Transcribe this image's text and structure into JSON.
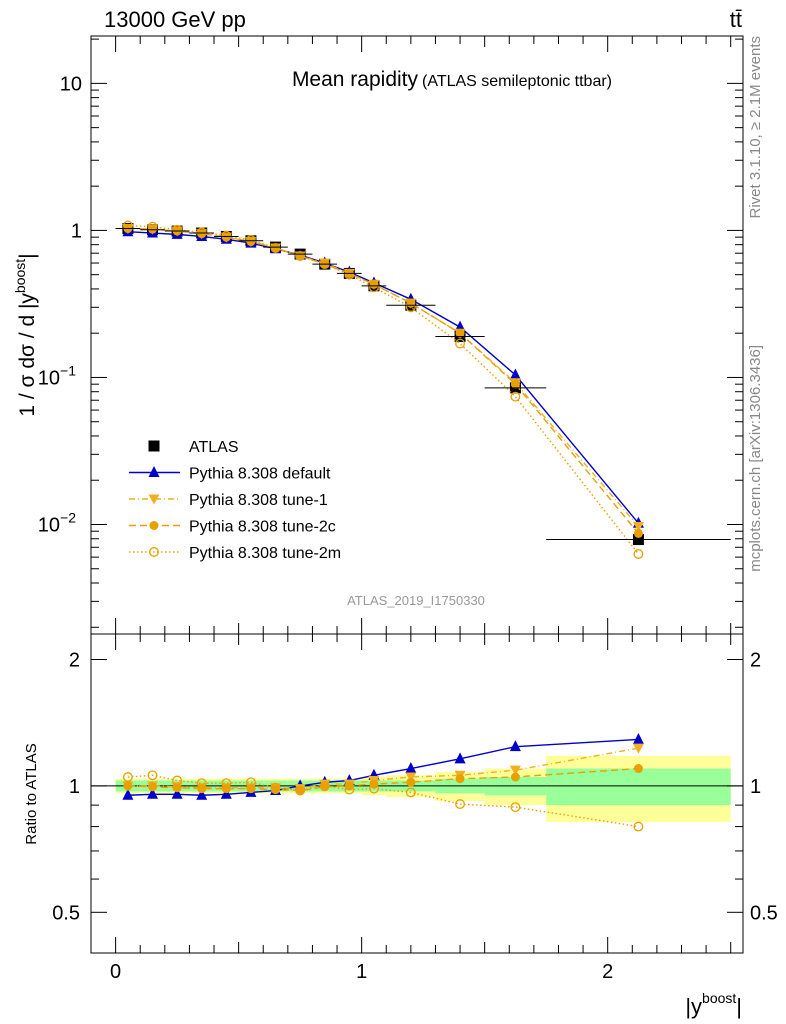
{
  "header": {
    "left": "13000 GeV pp",
    "right": "tt̄"
  },
  "side_labels": {
    "rivet": "Rivet 3.1.10, ≥ 2.1M events",
    "mcplots": "mcplots.cern.ch [arXiv:1306.3436]"
  },
  "chart_data": {
    "type": "line",
    "title": "Mean rapidity",
    "subtitle": "(ATLAS semileptonic ttbar)",
    "watermark": "ATLAS_2019_I1750330",
    "xlabel": "|y",
    "xlabel_sup": "boost",
    "xlabel_end": "|",
    "ylabel_main": "1 / σ dσ / d |y",
    "ylabel_main_sup": "boost",
    "ylabel_main_end": "|",
    "ylabel_ratio": "Ratio to ATLAS",
    "xlim": [
      -0.1,
      2.55
    ],
    "ylim_main": [
      0.0018,
      21
    ],
    "ylim_ratio": [
      0.4,
      2.3
    ],
    "yscale_main": "log",
    "yscale_ratio": "log",
    "xticks": [
      "0",
      "1",
      "2"
    ],
    "yticks_main": [
      {
        "value": 10,
        "label": "10"
      },
      {
        "value": 1,
        "label": "1"
      },
      {
        "value": 0.1,
        "label": "10",
        "exp": "−1"
      },
      {
        "value": 0.01,
        "label": "10",
        "exp": "−2"
      }
    ],
    "yticks_ratio": [
      "0.5",
      "1",
      "2"
    ],
    "legend_position": "lower-left",
    "x": [
      0.05,
      0.15,
      0.25,
      0.35,
      0.45,
      0.55,
      0.65,
      0.75,
      0.85,
      0.95,
      1.05,
      1.2,
      1.4,
      1.625,
      2.125
    ],
    "x_bins": [
      [
        0.0,
        0.1
      ],
      [
        0.1,
        0.2
      ],
      [
        0.2,
        0.3
      ],
      [
        0.3,
        0.4
      ],
      [
        0.4,
        0.5
      ],
      [
        0.5,
        0.6
      ],
      [
        0.6,
        0.7
      ],
      [
        0.7,
        0.8
      ],
      [
        0.8,
        0.9
      ],
      [
        0.9,
        1.0
      ],
      [
        1.0,
        1.1
      ],
      [
        1.1,
        1.3
      ],
      [
        1.3,
        1.5
      ],
      [
        1.5,
        1.75
      ],
      [
        1.75,
        2.5
      ]
    ],
    "series": [
      {
        "name": "ATLAS",
        "color": "#000000",
        "marker": "square",
        "line": "none",
        "values": [
          1.03,
          1.01,
          0.99,
          0.96,
          0.91,
          0.85,
          0.77,
          0.69,
          0.59,
          0.51,
          0.42,
          0.31,
          0.19,
          0.085,
          0.0079
        ]
      },
      {
        "name": "Pythia 8.308 default",
        "color": "#0000cc",
        "marker": "triangle-up",
        "line": "solid",
        "values": [
          0.98,
          0.96,
          0.94,
          0.91,
          0.87,
          0.82,
          0.75,
          0.68,
          0.6,
          0.52,
          0.44,
          0.34,
          0.22,
          0.104,
          0.0102
        ]
      },
      {
        "name": "Pythia 8.308 tune-1",
        "color": "#f0b020",
        "marker": "triangle-down",
        "line": "dashdot",
        "values": [
          1.03,
          1.02,
          0.99,
          0.95,
          0.9,
          0.84,
          0.76,
          0.67,
          0.6,
          0.51,
          0.43,
          0.32,
          0.2,
          0.092,
          0.0097
        ]
      },
      {
        "name": "Pythia 8.308 tune-2c",
        "color": "#e8a000",
        "marker": "circle",
        "line": "dashed",
        "values": [
          1.03,
          1.02,
          0.99,
          0.95,
          0.9,
          0.84,
          0.76,
          0.67,
          0.59,
          0.51,
          0.43,
          0.32,
          0.2,
          0.09,
          0.0087
        ]
      },
      {
        "name": "Pythia 8.308 tune-2m",
        "color": "#e8a000",
        "marker": "circle-open",
        "line": "dotted",
        "values": [
          1.08,
          1.06,
          1.01,
          0.97,
          0.92,
          0.86,
          0.76,
          0.67,
          0.59,
          0.5,
          0.41,
          0.3,
          0.17,
          0.074,
          0.0063
        ]
      }
    ],
    "ratio": {
      "band_stat_sys_inner": [
        0.03,
        0.03,
        0.03,
        0.03,
        0.03,
        0.03,
        0.03,
        0.03,
        0.03,
        0.03,
        0.03,
        0.03,
        0.04,
        0.05,
        0.1
      ],
      "band_outer": [
        0.04,
        0.04,
        0.04,
        0.04,
        0.04,
        0.04,
        0.04,
        0.04,
        0.04,
        0.04,
        0.05,
        0.06,
        0.08,
        0.1,
        0.18
      ],
      "series": [
        {
          "name": "Pythia 8.308 default",
          "values": [
            0.95,
            0.955,
            0.955,
            0.95,
            0.955,
            0.965,
            0.975,
            1.0,
            1.02,
            1.03,
            1.06,
            1.1,
            1.16,
            1.24,
            1.29
          ]
        },
        {
          "name": "Pythia 8.308 tune-1",
          "values": [
            1.0,
            1.0,
            0.995,
            0.99,
            0.99,
            0.99,
            0.99,
            0.985,
            1.01,
            1.01,
            1.03,
            1.05,
            1.06,
            1.09,
            1.23
          ]
        },
        {
          "name": "Pythia 8.308 tune-2c",
          "values": [
            1.0,
            0.995,
            0.99,
            0.985,
            0.985,
            0.985,
            0.98,
            0.975,
            0.995,
            1.0,
            1.01,
            1.02,
            1.04,
            1.05,
            1.1
          ]
        },
        {
          "name": "Pythia 8.308 tune-2m",
          "values": [
            1.05,
            1.06,
            1.03,
            1.015,
            1.015,
            1.02,
            0.99,
            0.975,
            1.0,
            0.98,
            0.985,
            0.965,
            0.905,
            0.89,
            0.8
          ]
        }
      ]
    },
    "band_colors": {
      "inner": "#99ff99",
      "outer": "#ffff99"
    }
  }
}
